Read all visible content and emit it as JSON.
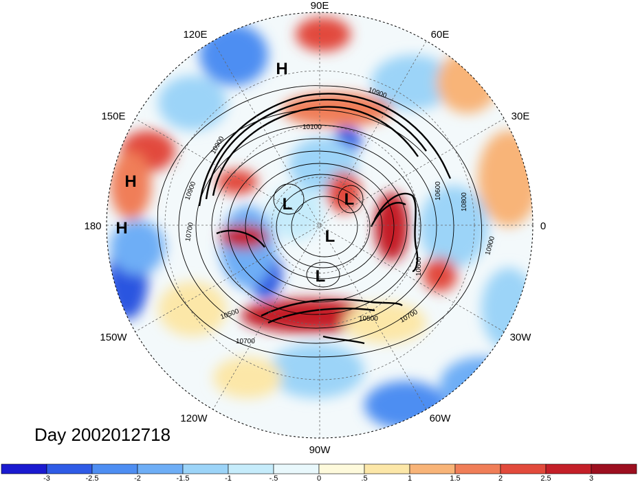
{
  "map": {
    "day_label": "Day 2002012718",
    "longitude_labels": [
      "90E",
      "60E",
      "30E",
      "0",
      "30W",
      "60W",
      "90W",
      "120W",
      "150W",
      "180",
      "150E",
      "120E"
    ],
    "pressure_systems": [
      {
        "type": "H",
        "name": "high-siberia"
      },
      {
        "type": "H",
        "name": "high-pacific-north"
      },
      {
        "type": "H",
        "name": "high-pacific-south"
      },
      {
        "type": "L",
        "name": "low-arctic-west"
      },
      {
        "type": "L",
        "name": "low-arctic-east"
      },
      {
        "type": "L",
        "name": "low-pole"
      },
      {
        "type": "L",
        "name": "low-canada"
      }
    ],
    "contour_labels": [
      "10900",
      "10100",
      "10900",
      "10900",
      "10700",
      "10600",
      "10800",
      "10900",
      "10600",
      "10500",
      "10500",
      "10700",
      "10700"
    ]
  },
  "colorbar": {
    "tick_labels": [
      "-3",
      "-2.5",
      "-2",
      "-1.5",
      "-1",
      "-.5",
      "0",
      ".5",
      "1",
      "1.5",
      "2",
      "2.5",
      "3"
    ],
    "colors": [
      "#1a1ad0",
      "#2f5be6",
      "#4e8ef2",
      "#6eaef6",
      "#9cd4f8",
      "#c6ecfb",
      "#e9f8fc",
      "#fefadc",
      "#fce7a8",
      "#f8b478",
      "#f07e58",
      "#e24a3c",
      "#c41f28",
      "#9c0f1f"
    ]
  },
  "colors": {
    "land_outline": "#000000",
    "background": "#ffffff"
  }
}
